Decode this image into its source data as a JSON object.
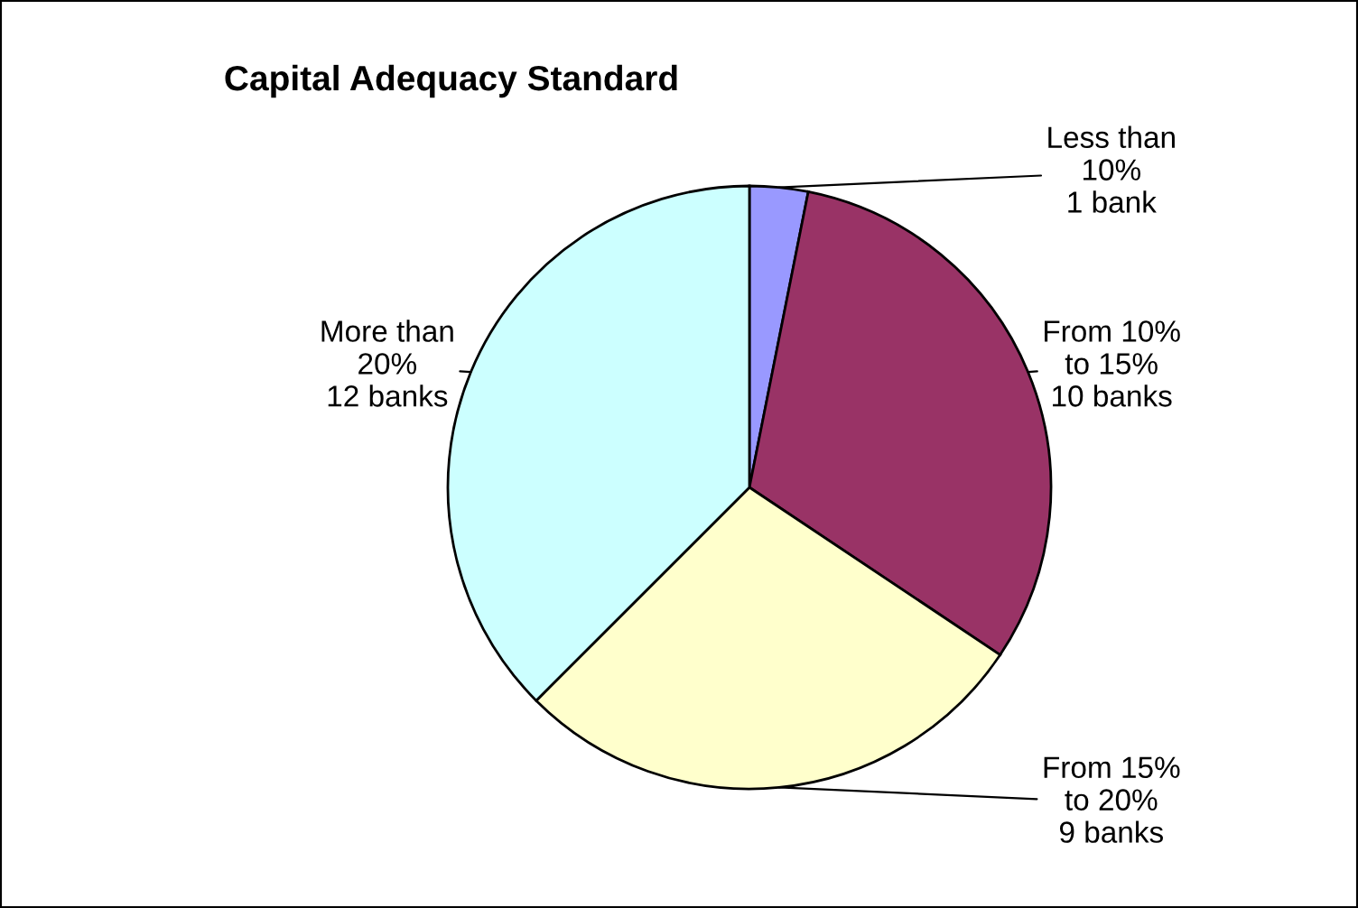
{
  "chart_data": {
    "type": "pie",
    "title": "Capital Adequacy Standard",
    "categories": [
      "Less than\n10%",
      "From 10%\nto 15%",
      "From 15%\nto 20%",
      "More than\n20%"
    ],
    "values": [
      1,
      10,
      9,
      12
    ],
    "value_labels": [
      "1 bank",
      "10 banks",
      "9 banks",
      "12 banks"
    ],
    "colors": [
      "#9999ff",
      "#993366",
      "#ffffcc",
      "#ccffff"
    ]
  }
}
